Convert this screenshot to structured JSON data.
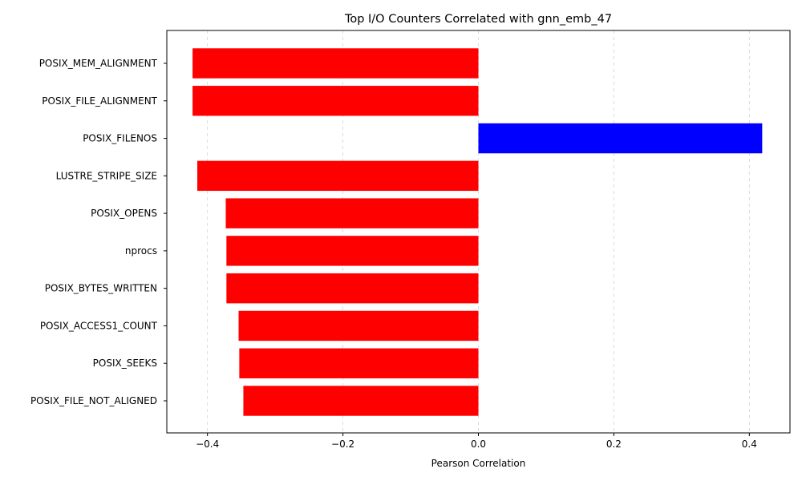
{
  "chart_data": {
    "type": "bar",
    "orientation": "horizontal",
    "title": "Top I/O Counters Correlated with gnn_emb_47",
    "xlabel": "Pearson Correlation",
    "ylabel": "",
    "xlim": [
      -0.46,
      0.46
    ],
    "xticks": [
      -0.4,
      -0.2,
      0.0,
      0.2,
      0.4
    ],
    "xtick_labels": [
      "−0.4",
      "−0.2",
      "0.0",
      "0.2",
      "0.4"
    ],
    "grid": {
      "x": true,
      "y": false,
      "style": "dashed"
    },
    "colors": {
      "negative": "#ff0000",
      "positive": "#0000ff",
      "grid": "#d3d3d3"
    },
    "categories": [
      "POSIX_MEM_ALIGNMENT",
      "POSIX_FILE_ALIGNMENT",
      "POSIX_FILENOS",
      "LUSTRE_STRIPE_SIZE",
      "POSIX_OPENS",
      "nprocs",
      "POSIX_BYTES_WRITTEN",
      "POSIX_ACCESS1_COUNT",
      "POSIX_SEEKS",
      "POSIX_FILE_NOT_ALIGNED"
    ],
    "values": [
      -0.422,
      -0.422,
      0.419,
      -0.415,
      -0.373,
      -0.372,
      -0.372,
      -0.354,
      -0.353,
      -0.347
    ]
  }
}
